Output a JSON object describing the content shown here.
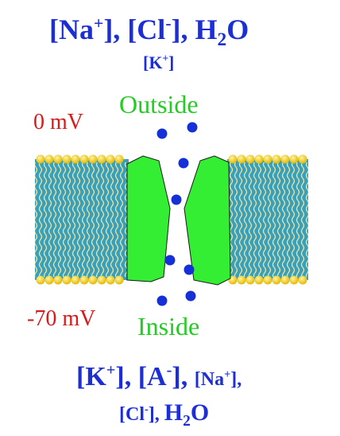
{
  "outside": {
    "line1": {
      "na": "[Na",
      "na_sup": "+",
      "na_close": "], ",
      "cl": "[Cl",
      "cl_sup": "-",
      "cl_close": "], ",
      "h": "H",
      "h_sub": "2",
      "o": "O"
    },
    "k": {
      "open": "[K",
      "sup": "+",
      "close": "]"
    }
  },
  "potentials": {
    "outside": "0 mV",
    "inside": "-70 mV"
  },
  "regions": {
    "outside": "Outside",
    "inside": "Inside"
  },
  "inside": {
    "line1": {
      "k": "[K",
      "k_sup": "+",
      "k_close": "], ",
      "a": "[A",
      "a_sup": "-",
      "a_close": "], ",
      "na": "[Na",
      "na_sup": "+",
      "na_close": "],"
    },
    "line2": {
      "cl": "[Cl",
      "cl_sup": "-",
      "cl_close": "], ",
      "h": "H",
      "h_sub": "2",
      "o": "O"
    }
  },
  "colors": {
    "ion_text": "#1c2fd6",
    "potential": "#d91a1a",
    "region": "#22cc22",
    "channel": "#33ee33",
    "ion_dot": "#1630d8",
    "membrane": "#3aa0ba",
    "lipid_head": "#f2cc26"
  }
}
